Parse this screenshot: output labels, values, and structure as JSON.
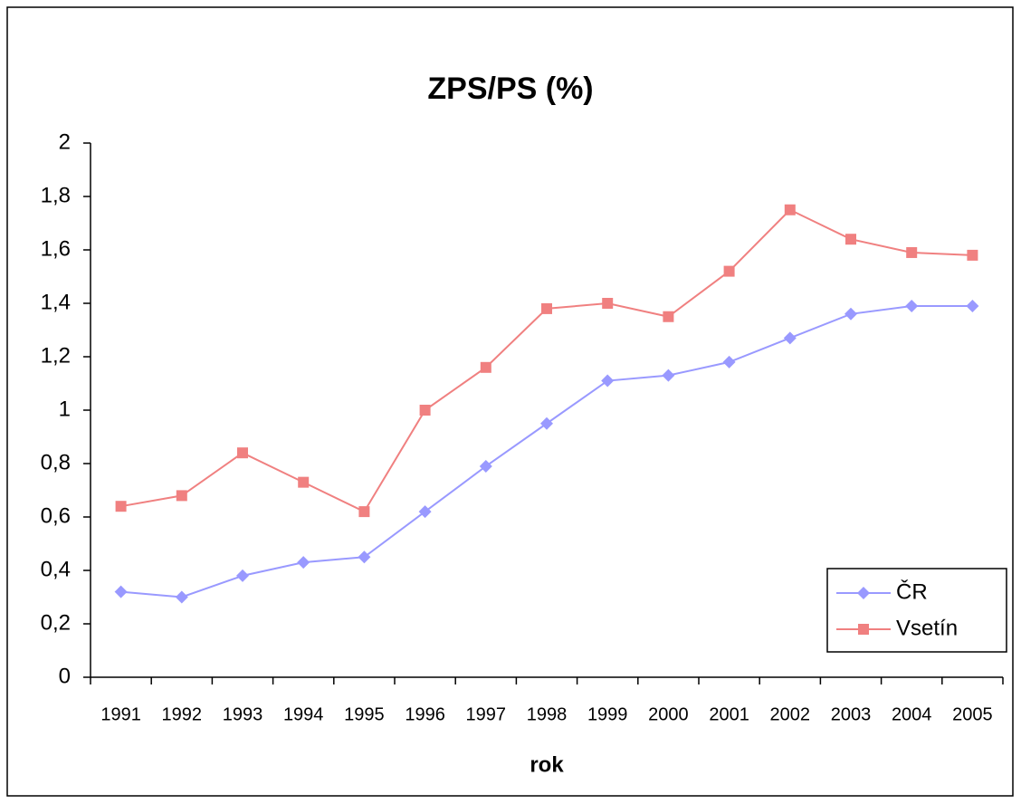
{
  "chart_data": {
    "type": "line",
    "title": "ZPS/PS (%)",
    "xlabel": "rok",
    "categories": [
      "1991",
      "1992",
      "1993",
      "1994",
      "1995",
      "1996",
      "1997",
      "1998",
      "1999",
      "2000",
      "2001",
      "2002",
      "2003",
      "2004",
      "2005"
    ],
    "series": [
      {
        "name": "ČR",
        "color": "#9999ff",
        "marker": "diamond",
        "values": [
          0.32,
          0.3,
          0.38,
          0.43,
          0.45,
          0.62,
          0.79,
          0.95,
          1.11,
          1.13,
          1.18,
          1.27,
          1.36,
          1.39,
          1.39
        ]
      },
      {
        "name": "Vsetín",
        "color": "#f08080",
        "marker": "square",
        "values": [
          0.64,
          0.68,
          0.84,
          0.73,
          0.62,
          1.0,
          1.16,
          1.38,
          1.4,
          1.35,
          1.52,
          1.75,
          1.64,
          1.59,
          1.58
        ]
      }
    ],
    "ylim": [
      0,
      2
    ],
    "yticks": [
      0,
      {
        "value": 0.2,
        "label": "0,2"
      },
      {
        "value": 0.4,
        "label": "0,4"
      },
      {
        "value": 0.6,
        "label": "0,6"
      },
      {
        "value": 0.8,
        "label": "0,8"
      },
      1,
      {
        "value": 1.2,
        "label": "1,2"
      },
      {
        "value": 1.4,
        "label": "1,4"
      },
      {
        "value": 1.6,
        "label": "1,6"
      },
      {
        "value": 1.8,
        "label": "1,8"
      },
      2
    ],
    "grid": false,
    "legend": "lower right"
  }
}
